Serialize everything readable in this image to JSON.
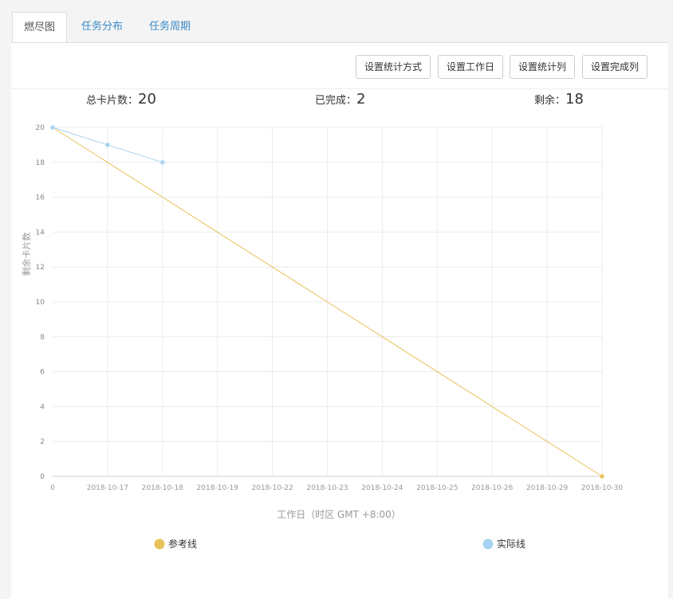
{
  "tabs": [
    "燃尽图",
    "任务分布",
    "任务周期"
  ],
  "active_tab": 0,
  "buttons": [
    "设置统计方式",
    "设置工作日",
    "设置统计列",
    "设置完成列"
  ],
  "stats": [
    {
      "label": "总卡片数：",
      "value": 20
    },
    {
      "label": "已完成：",
      "value": 2
    },
    {
      "label": "剩余：",
      "value": 18
    }
  ],
  "chart_data": {
    "type": "line",
    "y_label": "剩余卡片数",
    "x_label": "工作日（时区 GMT +8:00）",
    "categories": [
      "0",
      "2018-10-17",
      "2018-10-18",
      "2018-10-19",
      "2018-10-22",
      "2018-10-23",
      "2018-10-24",
      "2018-10-25",
      "2018-10-26",
      "2018-10-29",
      "2018-10-30"
    ],
    "series": [
      {
        "name": "参考线",
        "color": "#e8c25a",
        "markers": "last",
        "values": [
          20,
          18,
          16,
          14,
          12,
          10,
          8,
          6,
          4,
          2,
          0
        ]
      },
      {
        "name": "实际线",
        "color": "#a8d4ef",
        "markers": "all",
        "values": [
          20,
          19,
          18,
          null,
          null,
          null,
          null,
          null,
          null,
          null,
          null
        ]
      }
    ],
    "ylim": [
      0,
      20
    ],
    "yticks": [
      0,
      2,
      4,
      6,
      8,
      10,
      12,
      14,
      16,
      18,
      20
    ],
    "grid": true
  }
}
